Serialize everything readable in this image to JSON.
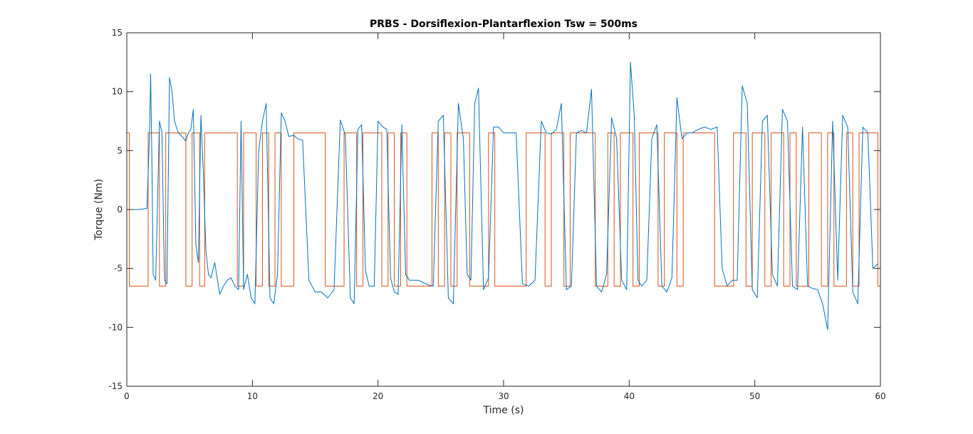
{
  "chart_data": {
    "type": "line",
    "title": "PRBS - Dorsiflexion-Plantarflexion Tsw = 500ms",
    "xlabel": "Time (s)",
    "ylabel": "Torque (Nm)",
    "xlim": [
      0,
      60
    ],
    "ylim": [
      -15,
      15
    ],
    "xticks": [
      0,
      10,
      20,
      30,
      40,
      50,
      60
    ],
    "yticks": [
      -15,
      -10,
      -5,
      0,
      5,
      10,
      15
    ],
    "grid": false,
    "colors": {
      "measured": "#0072BD",
      "prbs": "#D95319"
    },
    "series": [
      {
        "key": "prbs",
        "type": "step",
        "high": 6.5,
        "low": -6.5,
        "x": [
          0,
          0.2,
          1.7,
          2.6,
          3.1,
          4.7,
          5.2,
          5.8,
          6.2,
          8.8,
          9.3,
          10.3,
          10.8,
          11.3,
          11.8,
          12.3,
          13.3,
          15.8,
          17.3,
          18.3,
          18.8,
          20.3,
          20.8,
          21.3,
          21.8,
          22.3,
          24.3,
          24.8,
          25.3,
          25.8,
          26.3,
          27.3,
          28.8,
          29.3,
          31.8,
          33.3,
          33.8,
          34.8,
          35.3,
          37.3,
          38.3,
          38.8,
          39.3,
          40.3,
          40.8,
          42.3,
          42.8,
          43.8,
          44.3,
          46.8,
          48.3,
          49.3,
          49.8,
          50.8,
          51.3,
          52.3,
          52.8,
          53.3,
          54.3,
          55.3,
          55.8,
          56.3,
          57.3,
          57.8,
          58.3,
          59.8,
          60
        ],
        "y": [
          6.5,
          -6.5,
          6.5,
          -6.5,
          6.5,
          -6.5,
          6.5,
          -6.5,
          6.5,
          -6.5,
          6.5,
          -6.5,
          6.5,
          -6.5,
          6.5,
          -6.5,
          6.5,
          -6.5,
          6.5,
          -6.5,
          6.5,
          -6.5,
          6.5,
          -6.5,
          6.5,
          -6.5,
          6.5,
          -6.5,
          6.5,
          -6.5,
          6.5,
          -6.5,
          6.5,
          -6.5,
          6.5,
          -6.5,
          6.5,
          -6.5,
          6.5,
          -6.5,
          6.5,
          -6.5,
          6.5,
          -6.5,
          6.5,
          -6.5,
          6.5,
          -6.5,
          6.5,
          -6.5,
          6.5,
          -6.5,
          6.5,
          -6.5,
          6.5,
          -6.5,
          6.5,
          -6.5,
          6.5,
          -6.5,
          6.5,
          -6.5,
          6.5,
          -6.5,
          6.5,
          -6.5,
          6.5
        ]
      },
      {
        "key": "measured",
        "type": "line",
        "x": [
          0.2,
          1.0,
          1.6,
          1.8,
          1.9,
          2.0,
          2.1,
          2.3,
          2.6,
          2.8,
          3.0,
          3.2,
          3.4,
          3.6,
          3.8,
          4.1,
          4.4,
          4.7,
          4.9,
          5.1,
          5.3,
          5.5,
          5.7,
          5.9,
          6.1,
          6.3,
          6.5,
          6.7,
          7.0,
          7.4,
          7.7,
          8.0,
          8.3,
          8.6,
          8.9,
          9.1,
          9.3,
          9.6,
          9.9,
          10.2,
          10.5,
          10.8,
          11.1,
          11.4,
          11.7,
          12.0,
          12.3,
          12.6,
          12.9,
          13.3,
          13.6,
          14.0,
          14.5,
          15.0,
          15.5,
          16.0,
          16.5,
          17.0,
          17.4,
          17.8,
          18.1,
          18.4,
          18.7,
          19.0,
          19.3,
          19.7,
          20.0,
          20.4,
          20.7,
          21.0,
          21.3,
          21.6,
          21.9,
          22.2,
          22.5,
          22.8,
          23.2,
          23.6,
          24.0,
          24.4,
          24.8,
          25.2,
          25.6,
          26.0,
          26.4,
          26.8,
          27.1,
          27.4,
          27.7,
          28.0,
          28.4,
          28.8,
          29.2,
          29.6,
          30.0,
          30.5,
          31.0,
          31.5,
          32.0,
          32.5,
          33.0,
          33.4,
          33.8,
          34.2,
          34.6,
          35.0,
          35.4,
          35.8,
          36.2,
          36.6,
          37.0,
          37.4,
          37.8,
          38.2,
          38.6,
          39.0,
          39.4,
          39.8,
          40.1,
          40.4,
          40.7,
          41.0,
          41.4,
          41.8,
          42.2,
          42.6,
          43.0,
          43.4,
          43.8,
          44.2,
          44.6,
          45.0,
          45.5,
          46.0,
          46.5,
          47.0,
          47.4,
          47.8,
          48.2,
          48.6,
          49.0,
          49.4,
          49.8,
          50.2,
          50.6,
          51.0,
          51.4,
          51.8,
          52.2,
          52.6,
          53.0,
          53.4,
          53.8,
          54.2,
          54.6,
          55.0,
          55.4,
          55.8,
          56.2,
          56.6,
          57.0,
          57.4,
          57.8,
          58.2,
          58.6,
          59.0,
          59.4,
          59.8
        ],
        "y": [
          0.0,
          0.0,
          0.1,
          6.0,
          11.5,
          4.0,
          -5.5,
          -6.0,
          7.5,
          6.5,
          -6.0,
          -6.3,
          11.2,
          10.0,
          7.5,
          6.5,
          6.2,
          5.8,
          6.5,
          6.8,
          8.5,
          -3.0,
          -4.5,
          8.0,
          3.0,
          -3.5,
          -5.5,
          -5.8,
          -4.5,
          -7.2,
          -6.5,
          -6.0,
          -5.8,
          -6.5,
          -6.8,
          7.5,
          -6.8,
          -5.5,
          -7.5,
          -8.0,
          5.0,
          7.5,
          9.0,
          -7.5,
          -8.0,
          -5.5,
          8.2,
          7.5,
          6.2,
          6.3,
          6.0,
          5.9,
          -6.0,
          -7.0,
          -7.0,
          -7.5,
          -6.8,
          7.6,
          6.3,
          -7.5,
          -8.0,
          6.8,
          7.2,
          -5.2,
          -6.5,
          -6.5,
          7.5,
          7.0,
          6.8,
          -5.8,
          -7.0,
          -7.2,
          7.2,
          -5.5,
          -6.0,
          -6.0,
          -6.0,
          -6.2,
          -6.4,
          -6.5,
          7.5,
          8.0,
          -7.5,
          -8.0,
          9.0,
          6.0,
          -5.5,
          -6.0,
          9.0,
          10.3,
          -6.8,
          -5.8,
          7.0,
          7.0,
          6.5,
          6.5,
          6.5,
          -6.3,
          -6.5,
          -6.0,
          7.5,
          6.5,
          6.4,
          6.8,
          9.0,
          -6.8,
          -6.5,
          6.5,
          6.7,
          6.5,
          10.2,
          -6.5,
          -7.0,
          -5.5,
          7.8,
          6.0,
          -6.0,
          -6.8,
          12.5,
          8.0,
          -6.0,
          -6.5,
          -6.0,
          6.0,
          7.2,
          -6.5,
          -7.0,
          -5.8,
          9.5,
          6.0,
          6.5,
          6.5,
          6.8,
          7.0,
          6.8,
          7.0,
          -5.0,
          -6.5,
          -6.0,
          -6.0,
          10.5,
          9.0,
          -6.8,
          -7.5,
          7.5,
          8.0,
          -5.5,
          -6.5,
          8.5,
          7.5,
          -6.5,
          -6.8,
          7.0,
          -6.5,
          -6.7,
          -6.8,
          -8.0,
          -10.2,
          7.5,
          -6.0,
          8.0,
          7.0,
          -7.0,
          -8.0,
          7.0,
          6.5,
          -5.0,
          -4.6
        ]
      }
    ]
  }
}
